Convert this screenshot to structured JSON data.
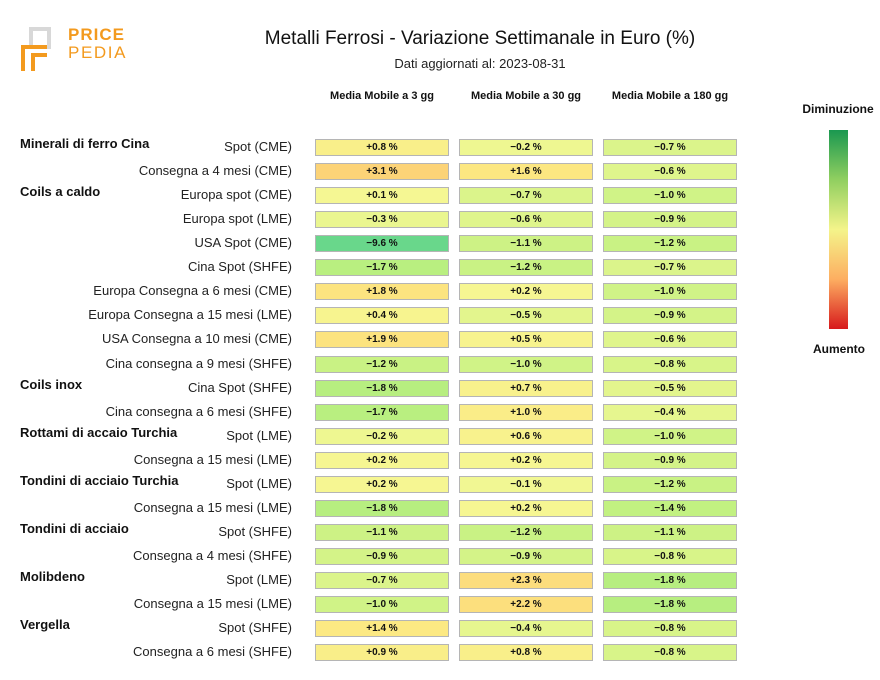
{
  "logo": {
    "line1": "PRICE",
    "line2": "PEDIA"
  },
  "colors": {
    "logo": "#f39a1e"
  },
  "chart_data": {
    "type": "table",
    "title": "Metalli Ferrosi - Variazione Settimanale in Euro (%)",
    "subtitle": "Dati aggiornati al: 2023-08-31",
    "columns": [
      "Media Mobile a 3 gg",
      "Media Mobile a 30 gg",
      "Media Mobile a 180 gg"
    ],
    "legend": {
      "top": "Diminuzione",
      "bottom": "Aumento",
      "colors": [
        "#1a9850",
        "#91cf60",
        "#f4f48a",
        "#fdae61",
        "#d7191c"
      ]
    },
    "groups": [
      {
        "name": "Minerali di ferro Cina",
        "rows": [
          {
            "label": "Spot (CME)",
            "values": [
              0.8,
              -0.2,
              -0.7
            ]
          },
          {
            "label": "Consegna a 4 mesi (CME)",
            "values": [
              3.1,
              1.6,
              -0.6
            ]
          }
        ]
      },
      {
        "name": "Coils a caldo",
        "rows": [
          {
            "label": "Europa spot (CME)",
            "values": [
              0.1,
              -0.7,
              -1.0
            ]
          },
          {
            "label": "Europa spot (LME)",
            "values": [
              -0.3,
              -0.6,
              -0.9
            ]
          },
          {
            "label": "USA Spot (CME)",
            "values": [
              -9.6,
              -1.1,
              -1.2
            ]
          },
          {
            "label": "Cina Spot (SHFE)",
            "values": [
              -1.7,
              -1.2,
              -0.7
            ]
          },
          {
            "label": "Europa Consegna a 6 mesi (CME)",
            "values": [
              1.8,
              0.2,
              -1.0
            ]
          },
          {
            "label": "Europa Consegna a 15 mesi (LME)",
            "values": [
              0.4,
              -0.5,
              -0.9
            ]
          },
          {
            "label": "USA Consegna a 10 mesi (CME)",
            "values": [
              1.9,
              0.5,
              -0.6
            ]
          },
          {
            "label": "Cina consegna a 9 mesi (SHFE)",
            "values": [
              -1.2,
              -1.0,
              -0.8
            ]
          }
        ]
      },
      {
        "name": "Coils inox",
        "rows": [
          {
            "label": "Cina Spot (SHFE)",
            "values": [
              -1.8,
              0.7,
              -0.5
            ]
          },
          {
            "label": "Cina consegna a 6 mesi (SHFE)",
            "values": [
              -1.7,
              1.0,
              -0.4
            ]
          }
        ]
      },
      {
        "name": "Rottami di accaio Turchia",
        "rows": [
          {
            "label": "Spot (LME)",
            "values": [
              -0.2,
              0.6,
              -1.0
            ]
          },
          {
            "label": "Consegna a 15 mesi (LME)",
            "values": [
              0.2,
              0.2,
              -0.9
            ]
          }
        ]
      },
      {
        "name": "Tondini di acciaio Turchia",
        "rows": [
          {
            "label": "Spot (LME)",
            "values": [
              0.2,
              -0.1,
              -1.2
            ]
          },
          {
            "label": "Consegna a 15 mesi (LME)",
            "values": [
              -1.8,
              0.2,
              -1.4
            ]
          }
        ]
      },
      {
        "name": "Tondini di acciaio",
        "rows": [
          {
            "label": "Spot (SHFE)",
            "values": [
              -1.1,
              -1.2,
              -1.1
            ]
          },
          {
            "label": "Consegna a 4 mesi (SHFE)",
            "values": [
              -0.9,
              -0.9,
              -0.8
            ]
          }
        ]
      },
      {
        "name": "Molibdeno",
        "rows": [
          {
            "label": "Spot (LME)",
            "values": [
              -0.7,
              2.3,
              -1.8
            ]
          },
          {
            "label": "Consegna a 15 mesi (LME)",
            "values": [
              -1.0,
              2.2,
              -1.8
            ]
          }
        ]
      },
      {
        "name": "Vergella",
        "rows": [
          {
            "label": "Spot (SHFE)",
            "values": [
              1.4,
              -0.4,
              -0.8
            ]
          },
          {
            "label": "Consegna a 6 mesi (SHFE)",
            "values": [
              0.9,
              0.8,
              -0.8
            ]
          }
        ]
      }
    ]
  }
}
